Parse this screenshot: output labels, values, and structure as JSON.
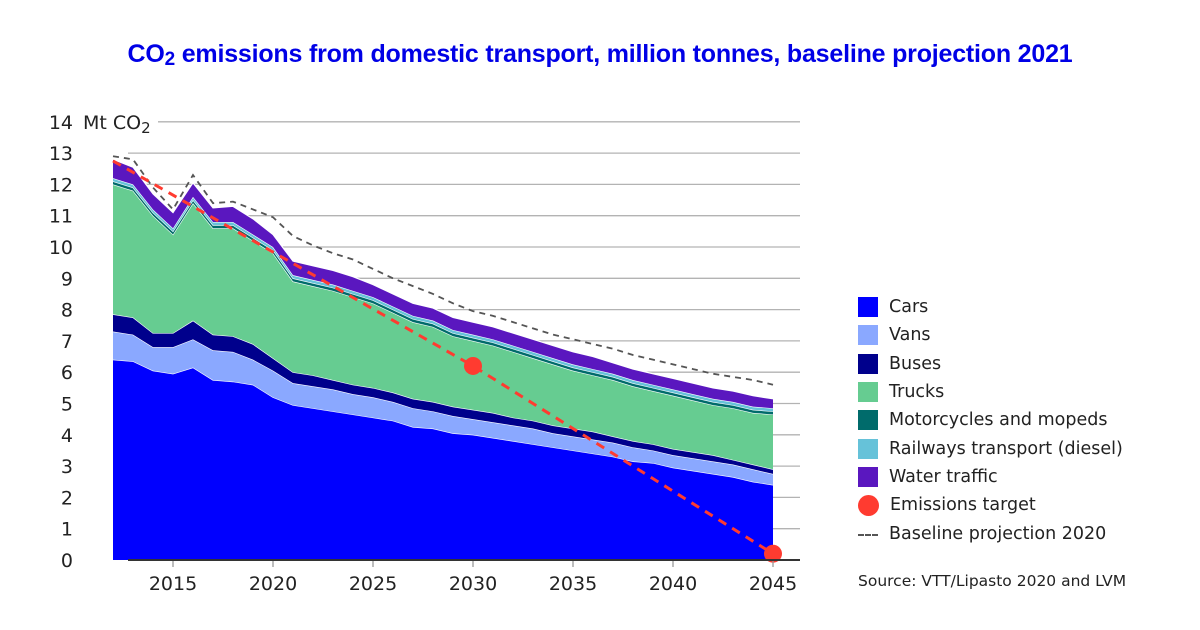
{
  "title_prefix": "CO",
  "title_sub": "2",
  "title_rest": " emissions from domestic transport, million tonnes, baseline projection 2021",
  "source": "Source: VTT/Lipasto 2020 and LVM",
  "chart_data": {
    "type": "area",
    "stacked": true,
    "title": "CO2 emissions from domestic transport, million tonnes, baseline projection 2021",
    "ylabel": "Mt CO2",
    "ylabel_prefix": "Mt CO",
    "ylabel_sub": "2",
    "xlabel": "",
    "ylim": [
      0,
      14
    ],
    "xlim": [
      2012,
      2045
    ],
    "grid": true,
    "legend_position": "right",
    "yticks": [
      "0",
      "1",
      "2",
      "3",
      "4",
      "5",
      "6",
      "7",
      "8",
      "9",
      "10",
      "11",
      "12",
      "13",
      "14"
    ],
    "xticks": [
      "2015",
      "2020",
      "2025",
      "2030",
      "2035",
      "2040",
      "2045"
    ],
    "x": [
      2012,
      2013,
      2014,
      2015,
      2016,
      2017,
      2018,
      2019,
      2020,
      2021,
      2022,
      2023,
      2024,
      2025,
      2026,
      2027,
      2028,
      2029,
      2030,
      2031,
      2032,
      2033,
      2034,
      2035,
      2036,
      2037,
      2038,
      2039,
      2040,
      2041,
      2042,
      2043,
      2044,
      2045
    ],
    "series": [
      {
        "name": "Cars",
        "color": "#0000ff",
        "values": [
          6.4,
          6.35,
          6.05,
          5.95,
          6.15,
          5.75,
          5.7,
          5.6,
          5.2,
          4.95,
          4.85,
          4.75,
          4.65,
          4.55,
          4.45,
          4.25,
          4.2,
          4.05,
          4.0,
          3.9,
          3.8,
          3.7,
          3.6,
          3.5,
          3.4,
          3.3,
          3.15,
          3.1,
          2.95,
          2.85,
          2.75,
          2.65,
          2.5,
          2.4
        ]
      },
      {
        "name": "Vans",
        "color": "#8aa8ff",
        "values": [
          0.9,
          0.85,
          0.75,
          0.85,
          0.9,
          0.95,
          0.95,
          0.8,
          0.85,
          0.7,
          0.7,
          0.7,
          0.65,
          0.65,
          0.6,
          0.6,
          0.55,
          0.55,
          0.5,
          0.5,
          0.5,
          0.5,
          0.45,
          0.45,
          0.45,
          0.45,
          0.45,
          0.4,
          0.4,
          0.4,
          0.4,
          0.4,
          0.4,
          0.35
        ]
      },
      {
        "name": "Buses",
        "color": "#00008c",
        "values": [
          0.55,
          0.55,
          0.45,
          0.45,
          0.6,
          0.5,
          0.5,
          0.5,
          0.4,
          0.35,
          0.35,
          0.3,
          0.3,
          0.3,
          0.3,
          0.3,
          0.3,
          0.3,
          0.3,
          0.3,
          0.25,
          0.25,
          0.25,
          0.25,
          0.25,
          0.2,
          0.2,
          0.2,
          0.2,
          0.2,
          0.2,
          0.15,
          0.15,
          0.15
        ]
      },
      {
        "name": "Trucks",
        "color": "#66cc91",
        "values": [
          4.15,
          4.05,
          3.75,
          3.15,
          3.75,
          3.4,
          3.45,
          3.3,
          3.35,
          2.9,
          2.85,
          2.85,
          2.8,
          2.7,
          2.55,
          2.45,
          2.4,
          2.25,
          2.2,
          2.15,
          2.1,
          2.0,
          1.95,
          1.85,
          1.8,
          1.8,
          1.75,
          1.7,
          1.7,
          1.65,
          1.6,
          1.65,
          1.65,
          1.75
        ]
      },
      {
        "name": "Motorcycles and mopeds",
        "color": "#006b6b",
        "values": [
          0.1,
          0.1,
          0.1,
          0.1,
          0.1,
          0.1,
          0.1,
          0.1,
          0.1,
          0.1,
          0.1,
          0.1,
          0.1,
          0.1,
          0.1,
          0.1,
          0.1,
          0.1,
          0.1,
          0.1,
          0.1,
          0.1,
          0.1,
          0.1,
          0.1,
          0.1,
          0.1,
          0.1,
          0.1,
          0.1,
          0.1,
          0.1,
          0.1,
          0.1
        ]
      },
      {
        "name": "Railways transport (diesel)",
        "color": "#66c2d9",
        "values": [
          0.1,
          0.1,
          0.1,
          0.1,
          0.1,
          0.1,
          0.1,
          0.1,
          0.1,
          0.1,
          0.1,
          0.1,
          0.1,
          0.1,
          0.1,
          0.1,
          0.1,
          0.1,
          0.1,
          0.1,
          0.1,
          0.1,
          0.1,
          0.1,
          0.1,
          0.1,
          0.1,
          0.1,
          0.1,
          0.1,
          0.1,
          0.1,
          0.1,
          0.1
        ]
      },
      {
        "name": "Water traffic",
        "color": "#5a17bf",
        "values": [
          0.6,
          0.55,
          0.5,
          0.5,
          0.45,
          0.45,
          0.5,
          0.5,
          0.4,
          0.45,
          0.45,
          0.45,
          0.45,
          0.4,
          0.4,
          0.4,
          0.4,
          0.4,
          0.4,
          0.4,
          0.4,
          0.4,
          0.4,
          0.4,
          0.4,
          0.35,
          0.35,
          0.35,
          0.35,
          0.35,
          0.35,
          0.35,
          0.35,
          0.3
        ]
      }
    ],
    "emissions_target": {
      "name": "Emissions target",
      "color": "#ff3b30",
      "line_x": [
        2012,
        2030,
        2045
      ],
      "line_y": [
        12.75,
        6.2,
        0.2
      ],
      "points": [
        {
          "x": 2030,
          "y": 6.2
        },
        {
          "x": 2045,
          "y": 0.2
        }
      ]
    },
    "baseline_2020": {
      "name": "Baseline projection 2020",
      "color": "#555555",
      "values": [
        12.9,
        12.8,
        11.9,
        11.2,
        12.3,
        11.4,
        11.45,
        11.2,
        10.95,
        10.35,
        10.05,
        9.8,
        9.6,
        9.3,
        9.0,
        8.75,
        8.5,
        8.2,
        7.95,
        7.8,
        7.6,
        7.4,
        7.2,
        7.05,
        6.9,
        6.75,
        6.55,
        6.4,
        6.25,
        6.1,
        5.95,
        5.85,
        5.75,
        5.6
      ]
    },
    "legend": [
      {
        "label": "Cars",
        "kind": "box",
        "color": "#0000ff"
      },
      {
        "label": "Vans",
        "kind": "box",
        "color": "#8aa8ff"
      },
      {
        "label": "Buses",
        "kind": "box",
        "color": "#00008c"
      },
      {
        "label": "Trucks",
        "kind": "box",
        "color": "#66cc91"
      },
      {
        "label": "Motorcycles and mopeds",
        "kind": "box",
        "color": "#006b6b"
      },
      {
        "label": "Railways transport (diesel)",
        "kind": "box",
        "color": "#66c2d9"
      },
      {
        "label": "Water traffic",
        "kind": "box",
        "color": "#5a17bf"
      },
      {
        "label": "Emissions target",
        "kind": "dot",
        "color": "#ff3b30"
      },
      {
        "label": "Baseline projection 2020",
        "kind": "dash",
        "color": "#555555"
      }
    ]
  }
}
